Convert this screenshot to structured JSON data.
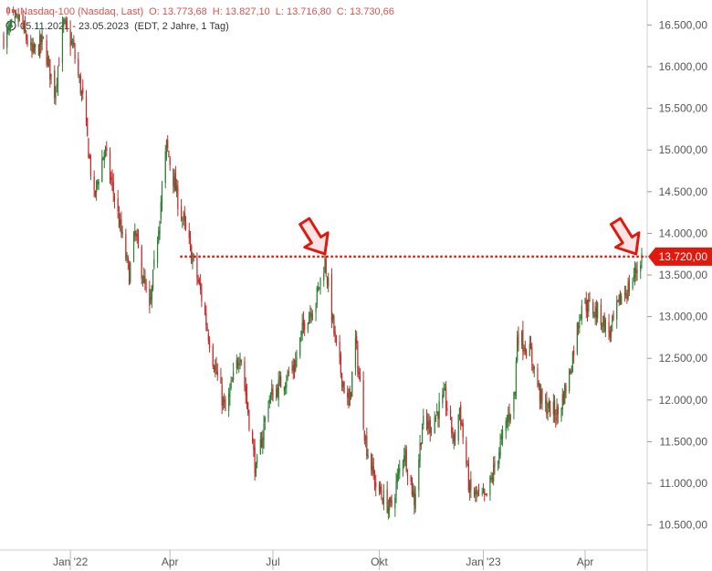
{
  "header": {
    "instrument": "Nasdaq-100 (Nasdaq, Last)",
    "open": "O: 13.773,68",
    "high": "H: 13.827,10",
    "low": "L: 13.716,80",
    "close": "C: 13.730,66",
    "range": "05.11.2021 - 23.05.2023",
    "meta": "(EDT, 2 Jahre, 1 Tag)"
  },
  "colors": {
    "up": "#2e7d32",
    "down": "#c62828",
    "level": "#e0190f",
    "arrow_fill": "#fde4e4",
    "arrow_stroke": "#e0190f",
    "axis_text": "#555555",
    "grid": "#e6e6e6"
  },
  "chart_data": {
    "type": "candlestick",
    "x_tick_labels": [
      "Jan '22",
      "Apr",
      "Jul",
      "Okt",
      "Jan '23",
      "Apr"
    ],
    "x_tick_dates": [
      "2022-01-03",
      "2022-04-01",
      "2022-07-01",
      "2022-10-03",
      "2023-01-03",
      "2023-04-03"
    ],
    "x_range": [
      "2021-11-05",
      "2023-05-23"
    ],
    "y_range": [
      10200,
      16800
    ],
    "y_tick_values": [
      10500,
      11000,
      11500,
      12000,
      12500,
      13000,
      13500,
      14000,
      14500,
      15000,
      15500,
      16000,
      16500
    ],
    "y_tick_labels": [
      "10.500,00",
      "11.000,00",
      "11.500,00",
      "12.000,00",
      "12.500,00",
      "13.000,00",
      "13.500,00",
      "14.000,00",
      "14.500,00",
      "15.000,00",
      "15.500,00",
      "16.000,00",
      "16.500,00"
    ],
    "level": {
      "value": 13720,
      "label": "13.720,00",
      "start_date": "2022-04-10"
    },
    "arrows": [
      {
        "date": "2022-08-16",
        "value": 13720
      },
      {
        "date": "2023-05-18",
        "value": 13720
      }
    ],
    "closes": [
      [
        "2021-11-05",
        16350
      ],
      [
        "2021-11-19",
        16570
      ],
      [
        "2021-11-30",
        16150
      ],
      [
        "2021-12-10",
        16300
      ],
      [
        "2021-12-20",
        15700
      ],
      [
        "2021-12-28",
        16500
      ],
      [
        "2022-01-05",
        16250
      ],
      [
        "2022-01-14",
        15600
      ],
      [
        "2022-01-24",
        14400
      ],
      [
        "2022-01-28",
        14700
      ],
      [
        "2022-02-02",
        15000
      ],
      [
        "2022-02-10",
        14500
      ],
      [
        "2022-02-24",
        13500
      ],
      [
        "2022-03-01",
        14000
      ],
      [
        "2022-03-14",
        13050
      ],
      [
        "2022-03-29",
        15050
      ],
      [
        "2022-04-08",
        14400
      ],
      [
        "2022-04-19",
        13800
      ],
      [
        "2022-04-28",
        13300
      ],
      [
        "2022-05-09",
        12500
      ],
      [
        "2022-05-20",
        11850
      ],
      [
        "2022-06-02",
        12600
      ],
      [
        "2022-06-16",
        11130
      ],
      [
        "2022-06-27",
        12000
      ],
      [
        "2022-07-08",
        12200
      ],
      [
        "2022-07-20",
        12400
      ],
      [
        "2022-07-29",
        12950
      ],
      [
        "2022-08-08",
        13200
      ],
      [
        "2022-08-16",
        13680
      ],
      [
        "2022-08-26",
        12600
      ],
      [
        "2022-09-06",
        11900
      ],
      [
        "2022-09-12",
        12700
      ],
      [
        "2022-09-21",
        11500
      ],
      [
        "2022-09-30",
        10970
      ],
      [
        "2022-10-13",
        10690
      ],
      [
        "2022-10-25",
        11400
      ],
      [
        "2022-11-03",
        10800
      ],
      [
        "2022-11-10",
        11700
      ],
      [
        "2022-11-17",
        11700
      ],
      [
        "2022-11-30",
        12030
      ],
      [
        "2022-12-08",
        11500
      ],
      [
        "2022-12-13",
        11900
      ],
      [
        "2022-12-22",
        10900
      ],
      [
        "2023-01-05",
        10790
      ],
      [
        "2023-01-18",
        11450
      ],
      [
        "2023-01-31",
        12100
      ],
      [
        "2023-02-02",
        12800
      ],
      [
        "2023-02-14",
        12550
      ],
      [
        "2023-02-24",
        11950
      ],
      [
        "2023-03-10",
        11830
      ],
      [
        "2023-03-20",
        12300
      ],
      [
        "2023-03-31",
        13180
      ],
      [
        "2023-04-14",
        13050
      ],
      [
        "2023-04-25",
        12800
      ],
      [
        "2023-05-05",
        13250
      ],
      [
        "2023-05-12",
        13350
      ],
      [
        "2023-05-23",
        13730
      ]
    ]
  }
}
